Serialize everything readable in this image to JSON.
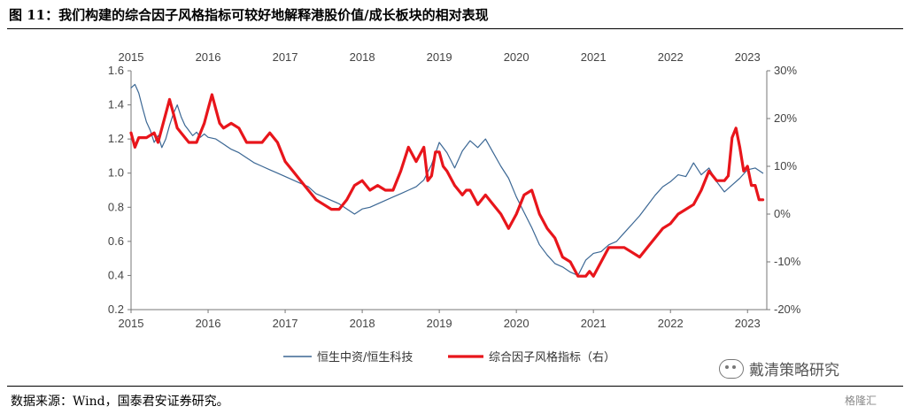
{
  "figure": {
    "title": "图 11：我们构建的综合因子风格指标可较好地解释港股价值/成长板块的相对表现",
    "source": "数据来源：Wind，国泰君安证券研究。",
    "watermark": "戴清策略研究",
    "logo": "格隆汇"
  },
  "chart_data": {
    "type": "line",
    "x_ticks": [
      "2015",
      "2016",
      "2017",
      "2018",
      "2019",
      "2020",
      "2021",
      "2022",
      "2023"
    ],
    "xlim": [
      "2015-01",
      "2023-03"
    ],
    "y_left": {
      "ticks": [
        "0.2",
        "0.4",
        "0.6",
        "0.8",
        "1.0",
        "1.2",
        "1.4",
        "1.6"
      ],
      "lim": [
        0.2,
        1.6
      ]
    },
    "y_right": {
      "ticks": [
        "-20%",
        "-10%",
        "0%",
        "10%",
        "20%",
        "30%"
      ],
      "lim": [
        -20,
        30
      ]
    },
    "grid": false,
    "legend_position": "bottom",
    "series": [
      {
        "name": "恒生中资/恒生科技",
        "axis": "left",
        "color": "#3b6794",
        "x": [
          2015.0,
          2015.05,
          2015.1,
          2015.15,
          2015.2,
          2015.25,
          2015.3,
          2015.35,
          2015.4,
          2015.45,
          2015.5,
          2015.55,
          2015.6,
          2015.65,
          2015.7,
          2015.75,
          2015.8,
          2015.85,
          2015.9,
          2015.95,
          2016.0,
          2016.1,
          2016.2,
          2016.3,
          2016.4,
          2016.5,
          2016.6,
          2016.7,
          2016.8,
          2016.9,
          2017.0,
          2017.1,
          2017.2,
          2017.3,
          2017.4,
          2017.5,
          2017.6,
          2017.7,
          2017.8,
          2017.9,
          2018.0,
          2018.1,
          2018.2,
          2018.3,
          2018.4,
          2018.5,
          2018.6,
          2018.7,
          2018.8,
          2018.9,
          2019.0,
          2019.1,
          2019.2,
          2019.3,
          2019.4,
          2019.5,
          2019.6,
          2019.7,
          2019.8,
          2019.9,
          2020.0,
          2020.1,
          2020.2,
          2020.3,
          2020.4,
          2020.5,
          2020.6,
          2020.7,
          2020.8,
          2020.9,
          2021.0,
          2021.1,
          2021.2,
          2021.3,
          2021.4,
          2021.5,
          2021.6,
          2021.7,
          2021.8,
          2021.9,
          2022.0,
          2022.1,
          2022.2,
          2022.3,
          2022.4,
          2022.5,
          2022.6,
          2022.7,
          2022.8,
          2022.9,
          2023.0,
          2023.1,
          2023.2
        ],
        "values": [
          1.5,
          1.52,
          1.47,
          1.38,
          1.3,
          1.25,
          1.18,
          1.22,
          1.15,
          1.2,
          1.28,
          1.35,
          1.4,
          1.33,
          1.28,
          1.25,
          1.22,
          1.24,
          1.21,
          1.23,
          1.21,
          1.2,
          1.17,
          1.14,
          1.12,
          1.09,
          1.06,
          1.04,
          1.02,
          1.0,
          0.98,
          0.96,
          0.94,
          0.92,
          0.88,
          0.86,
          0.84,
          0.82,
          0.79,
          0.76,
          0.79,
          0.8,
          0.82,
          0.84,
          0.86,
          0.88,
          0.9,
          0.92,
          0.96,
          1.05,
          1.18,
          1.12,
          1.03,
          1.13,
          1.19,
          1.15,
          1.2,
          1.12,
          1.04,
          0.97,
          0.86,
          0.77,
          0.68,
          0.58,
          0.52,
          0.47,
          0.45,
          0.42,
          0.4,
          0.49,
          0.53,
          0.54,
          0.58,
          0.6,
          0.65,
          0.7,
          0.75,
          0.81,
          0.87,
          0.92,
          0.95,
          0.99,
          0.98,
          1.06,
          0.99,
          1.03,
          0.95,
          0.89,
          0.93,
          0.97,
          1.02,
          1.03,
          1.0
        ]
      },
      {
        "name": "综合因子风格指标（右）",
        "axis": "right",
        "color": "#e8151b",
        "x": [
          2015.0,
          2015.05,
          2015.1,
          2015.2,
          2015.3,
          2015.35,
          2015.45,
          2015.5,
          2015.55,
          2015.6,
          2015.65,
          2015.75,
          2015.85,
          2015.95,
          2016.0,
          2016.05,
          2016.1,
          2016.15,
          2016.2,
          2016.3,
          2016.4,
          2016.5,
          2016.6,
          2016.7,
          2016.75,
          2016.8,
          2016.9,
          2017.0,
          2017.1,
          2017.2,
          2017.3,
          2017.4,
          2017.5,
          2017.6,
          2017.7,
          2017.8,
          2017.9,
          2018.0,
          2018.1,
          2018.2,
          2018.3,
          2018.4,
          2018.5,
          2018.6,
          2018.7,
          2018.8,
          2018.85,
          2018.9,
          2018.95,
          2019.0,
          2019.05,
          2019.1,
          2019.2,
          2019.3,
          2019.35,
          2019.4,
          2019.5,
          2019.6,
          2019.7,
          2019.8,
          2019.9,
          2020.0,
          2020.1,
          2020.2,
          2020.3,
          2020.4,
          2020.5,
          2020.6,
          2020.7,
          2020.8,
          2020.9,
          2020.95,
          2021.0,
          2021.1,
          2021.2,
          2021.3,
          2021.4,
          2021.5,
          2021.6,
          2021.7,
          2021.8,
          2021.9,
          2022.0,
          2022.1,
          2022.2,
          2022.3,
          2022.4,
          2022.5,
          2022.6,
          2022.7,
          2022.75,
          2022.8,
          2022.85,
          2022.9,
          2022.95,
          2023.0,
          2023.05,
          2023.1,
          2023.15,
          2023.2
        ],
        "values": [
          17,
          14,
          16,
          16,
          17,
          15,
          21,
          24,
          21,
          18,
          17,
          15,
          15,
          19,
          22,
          25,
          22,
          19,
          18,
          19,
          18,
          15,
          15,
          15,
          16,
          17,
          15,
          11,
          9,
          7,
          5,
          3,
          2,
          1,
          1,
          3,
          6,
          7,
          5,
          6,
          5,
          5,
          9,
          14,
          11,
          14,
          7,
          8,
          13,
          13,
          10,
          9,
          6,
          4,
          5,
          5,
          2,
          4,
          2,
          0,
          -3,
          0,
          4,
          5,
          0,
          -3,
          -5,
          -9,
          -10,
          -13,
          -13,
          -12,
          -13,
          -10,
          -7,
          -7,
          -7,
          -8,
          -9,
          -7,
          -5,
          -3,
          -2,
          0,
          1,
          2,
          5,
          9,
          7,
          7,
          8,
          16,
          18,
          14,
          9,
          10,
          6,
          6,
          3,
          3
        ]
      }
    ]
  }
}
